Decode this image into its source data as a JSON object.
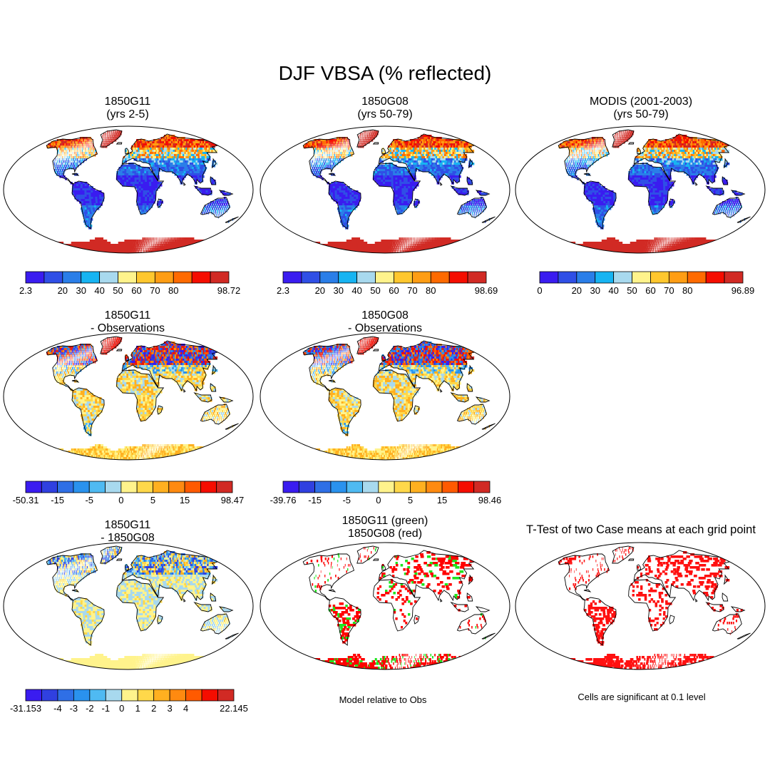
{
  "title": "DJF VBSA (% reflected)",
  "palette": [
    "#3a1cf0",
    "#2f4fe6",
    "#2a7ee8",
    "#17b4f2",
    "#a8d9ee",
    "#fff38c",
    "#ffc72e",
    "#ff9d14",
    "#ff6a00",
    "#f50d00",
    "#d12a24"
  ],
  "diff_palette": [
    "#3a1cf0",
    "#3040e0",
    "#2f6fe6",
    "#2a92ee",
    "#4fbaf2",
    "#a8d9ee",
    "#fff38c",
    "#ffd84a",
    "#ffb020",
    "#ff8a10",
    "#ff5a00",
    "#f50d00",
    "#d12a24"
  ],
  "panels": [
    {
      "id": "p1",
      "title1": "1850G11",
      "title2": "(yrs 2-5)",
      "type": "abs",
      "seed": 11,
      "colorbar": {
        "edge_left": "2.3",
        "edge_right": "98.72",
        "ticks": [
          "20",
          "30",
          "40",
          "50",
          "60",
          "70",
          "80"
        ]
      }
    },
    {
      "id": "p2",
      "title1": "1850G08",
      "title2": "(yrs 50-79)",
      "type": "abs",
      "seed": 23,
      "colorbar": {
        "edge_left": "2.3",
        "edge_right": "98.69",
        "ticks": [
          "20",
          "30",
          "40",
          "50",
          "60",
          "70",
          "80"
        ]
      }
    },
    {
      "id": "p3",
      "title1": "MODIS (2001-2003)",
      "title2": "(yrs 50-79)",
      "type": "abs",
      "seed": 37,
      "colorbar": {
        "edge_left": "0",
        "edge_right": "96.89",
        "ticks": [
          "20",
          "30",
          "40",
          "50",
          "60",
          "70",
          "80"
        ]
      }
    },
    {
      "id": "p4",
      "title1": "1850G11",
      "title2": "- Observations",
      "type": "diff",
      "seed": 41,
      "colorbar": {
        "edge_left": "-50.31",
        "edge_right": "98.47",
        "ticks": [
          "-15",
          "-5",
          "0",
          "5",
          "15"
        ]
      }
    },
    {
      "id": "p5",
      "title1": "1850G08",
      "title2": "- Observations",
      "type": "diff",
      "seed": 53,
      "colorbar": {
        "edge_left": "-39.76",
        "edge_right": "98.46",
        "ticks": [
          "-15",
          "-5",
          "0",
          "5",
          "15"
        ]
      }
    },
    {
      "id": "p6",
      "title1": "1850G11",
      "title2": "- 1850G08",
      "type": "diff2",
      "seed": 67,
      "colorbar": {
        "edge_left": "-31.153",
        "edge_right": "22.145",
        "ticks": [
          "-4",
          "-3",
          "-2",
          "-1",
          "0",
          "1",
          "2",
          "3",
          "4"
        ]
      }
    },
    {
      "id": "p7",
      "title1": "1850G11 (green)",
      "title2": "1850G08 (red)",
      "type": "rel",
      "seed": 71,
      "note": "Model relative to Obs"
    },
    {
      "id": "p8",
      "title1": "T-Test of two Case means at each grid point",
      "title2": "",
      "type": "ttest",
      "seed": 89,
      "note": "Cells are significant at 0.1 level"
    }
  ]
}
